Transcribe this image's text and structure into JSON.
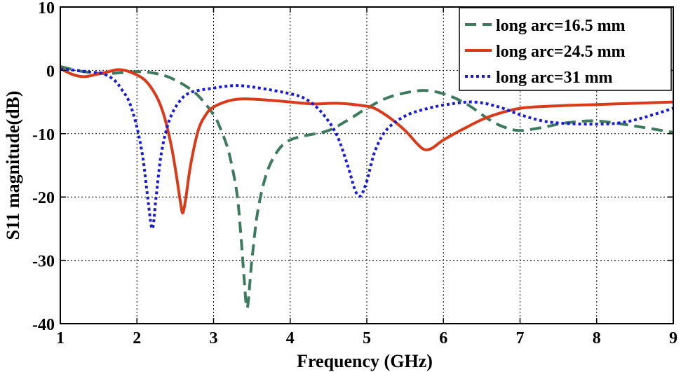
{
  "chart_data": {
    "type": "line",
    "title": "",
    "xlabel": "Frequency (GHz)",
    "ylabel": "S11 magnitude(dB)",
    "xlim": [
      1,
      9
    ],
    "ylim": [
      -40,
      10
    ],
    "xticks": [
      1,
      2,
      3,
      4,
      5,
      6,
      7,
      8,
      9
    ],
    "yticks": [
      10,
      0,
      -10,
      -20,
      -30,
      -40
    ],
    "grid": true,
    "legend_position": "top-right",
    "series": [
      {
        "name": "long arc=16.5 mm",
        "color": "#3d7a5e",
        "style": "dashed",
        "points": [
          [
            1.0,
            0.6
          ],
          [
            1.3,
            -0.2
          ],
          [
            1.6,
            -0.5
          ],
          [
            2.0,
            -0.2
          ],
          [
            2.2,
            -0.4
          ],
          [
            2.4,
            -1.0
          ],
          [
            2.6,
            -2.2
          ],
          [
            2.8,
            -4.0
          ],
          [
            3.0,
            -7.0
          ],
          [
            3.1,
            -9.5
          ],
          [
            3.2,
            -13.0
          ],
          [
            3.3,
            -19.0
          ],
          [
            3.35,
            -25.0
          ],
          [
            3.4,
            -33.0
          ],
          [
            3.44,
            -37.5
          ],
          [
            3.5,
            -30.0
          ],
          [
            3.58,
            -22.0
          ],
          [
            3.7,
            -16.0
          ],
          [
            3.85,
            -12.5
          ],
          [
            4.0,
            -11.0
          ],
          [
            4.2,
            -10.3
          ],
          [
            4.5,
            -9.5
          ],
          [
            4.8,
            -7.5
          ],
          [
            5.0,
            -6.0
          ],
          [
            5.3,
            -4.2
          ],
          [
            5.7,
            -3.2
          ],
          [
            6.0,
            -3.7
          ],
          [
            6.3,
            -5.3
          ],
          [
            6.6,
            -7.8
          ],
          [
            6.8,
            -9.0
          ],
          [
            7.0,
            -9.5
          ],
          [
            7.3,
            -9.0
          ],
          [
            7.6,
            -8.3
          ],
          [
            8.0,
            -8.0
          ],
          [
            8.5,
            -8.8
          ],
          [
            9.0,
            -9.8
          ]
        ]
      },
      {
        "name": "long arc=24.5 mm",
        "color": "#d93a1a",
        "style": "solid",
        "points": [
          [
            1.0,
            0.3
          ],
          [
            1.15,
            -0.6
          ],
          [
            1.3,
            -1.0
          ],
          [
            1.45,
            -0.7
          ],
          [
            1.6,
            -0.3
          ],
          [
            1.75,
            0.1
          ],
          [
            1.9,
            -0.2
          ],
          [
            2.1,
            -1.5
          ],
          [
            2.25,
            -4.0
          ],
          [
            2.35,
            -7.0
          ],
          [
            2.45,
            -12.0
          ],
          [
            2.52,
            -17.0
          ],
          [
            2.57,
            -21.0
          ],
          [
            2.6,
            -22.5
          ],
          [
            2.64,
            -20.0
          ],
          [
            2.7,
            -15.0
          ],
          [
            2.8,
            -9.5
          ],
          [
            2.9,
            -7.0
          ],
          [
            3.0,
            -5.8
          ],
          [
            3.2,
            -4.8
          ],
          [
            3.4,
            -4.5
          ],
          [
            3.7,
            -4.7
          ],
          [
            4.0,
            -5.0
          ],
          [
            4.3,
            -5.3
          ],
          [
            4.6,
            -5.2
          ],
          [
            4.9,
            -5.5
          ],
          [
            5.1,
            -6.0
          ],
          [
            5.3,
            -7.5
          ],
          [
            5.5,
            -9.5
          ],
          [
            5.65,
            -11.5
          ],
          [
            5.75,
            -12.5
          ],
          [
            5.85,
            -12.3
          ],
          [
            6.0,
            -11.0
          ],
          [
            6.3,
            -9.0
          ],
          [
            6.6,
            -7.3
          ],
          [
            7.0,
            -6.0
          ],
          [
            7.5,
            -5.6
          ],
          [
            8.0,
            -5.4
          ],
          [
            8.5,
            -5.2
          ],
          [
            9.0,
            -5.0
          ]
        ]
      },
      {
        "name": "long arc=31 mm",
        "color": "#1a1ad9",
        "style": "dotted",
        "points": [
          [
            1.0,
            0.2
          ],
          [
            1.2,
            0.0
          ],
          [
            1.4,
            -0.3
          ],
          [
            1.55,
            -0.5
          ],
          [
            1.7,
            -1.5
          ],
          [
            1.8,
            -3.0
          ],
          [
            1.9,
            -5.0
          ],
          [
            2.0,
            -9.0
          ],
          [
            2.08,
            -14.0
          ],
          [
            2.14,
            -20.0
          ],
          [
            2.2,
            -25.0
          ],
          [
            2.25,
            -20.0
          ],
          [
            2.32,
            -13.0
          ],
          [
            2.42,
            -8.0
          ],
          [
            2.55,
            -5.0
          ],
          [
            2.7,
            -3.5
          ],
          [
            3.0,
            -2.8
          ],
          [
            3.3,
            -2.4
          ],
          [
            3.6,
            -2.8
          ],
          [
            4.0,
            -3.7
          ],
          [
            4.2,
            -4.5
          ],
          [
            4.4,
            -6.5
          ],
          [
            4.6,
            -10.0
          ],
          [
            4.75,
            -15.0
          ],
          [
            4.85,
            -19.0
          ],
          [
            4.92,
            -19.8
          ],
          [
            5.0,
            -17.5
          ],
          [
            5.1,
            -13.0
          ],
          [
            5.25,
            -9.5
          ],
          [
            5.5,
            -7.2
          ],
          [
            5.8,
            -6.0
          ],
          [
            6.1,
            -5.3
          ],
          [
            6.4,
            -5.0
          ],
          [
            6.7,
            -5.7
          ],
          [
            7.0,
            -7.0
          ],
          [
            7.3,
            -8.0
          ],
          [
            7.6,
            -8.4
          ],
          [
            8.0,
            -8.5
          ],
          [
            8.3,
            -8.3
          ],
          [
            8.6,
            -7.5
          ],
          [
            9.0,
            -6.0
          ]
        ]
      }
    ]
  }
}
